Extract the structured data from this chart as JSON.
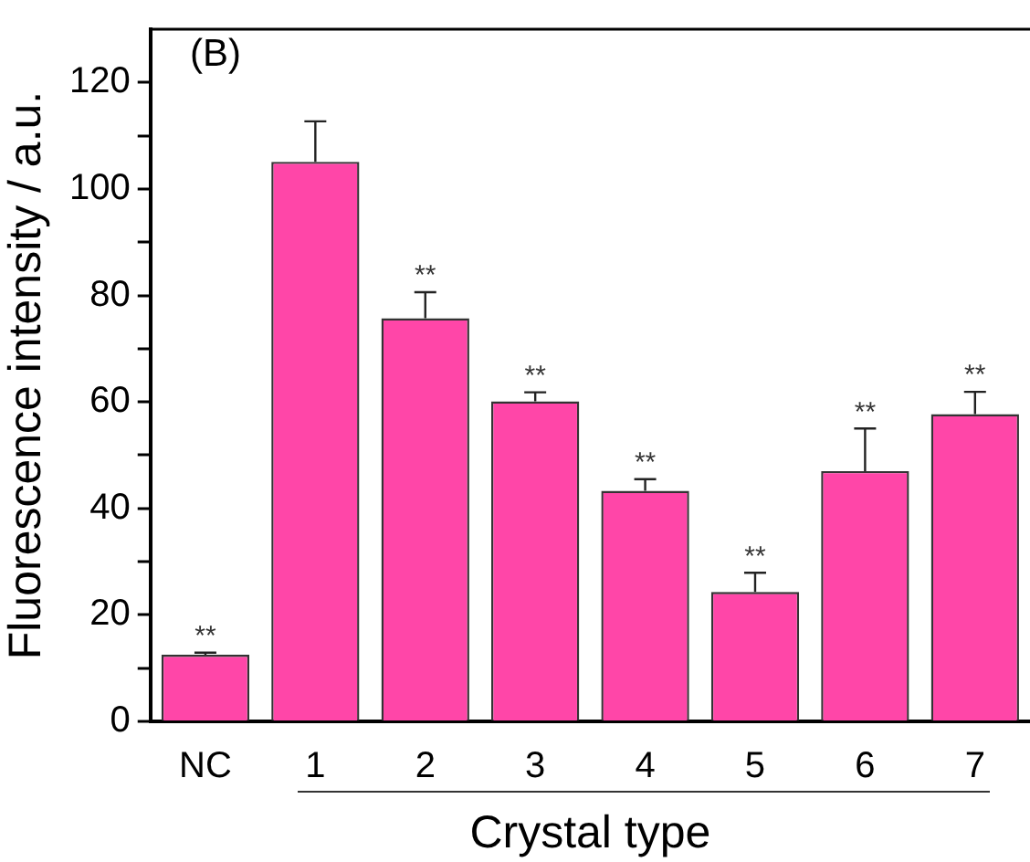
{
  "chart_data": {
    "type": "bar",
    "xlabel": "Crystal type",
    "ylabel": "Fluorescence intensity / a.u.",
    "categories": [
      "NC",
      "1",
      "2",
      "3",
      "4",
      "5",
      "6",
      "7"
    ],
    "values": [
      12.5,
      105.1,
      75.7,
      60.1,
      43.3,
      24.3,
      47.0,
      57.7
    ],
    "errors": [
      [
        12.5,
        12.9
      ],
      [
        105.1,
        112.7
      ],
      [
        75.7,
        80.6
      ],
      [
        60.1,
        61.8
      ],
      [
        43.3,
        45.5
      ],
      [
        24.3,
        27.9
      ],
      [
        47.0,
        55.0
      ],
      [
        57.7,
        61.9
      ]
    ],
    "color": "#ff46a8",
    "ylim": [
      0,
      130
    ],
    "yticks": [
      0,
      {
        "value": 10,
        "label": null
      },
      20,
      {
        "value": 30,
        "label": null
      },
      40,
      {
        "value": 50,
        "label": null
      },
      60,
      {
        "value": 70,
        "label": null
      },
      80,
      {
        "value": 90,
        "label": null
      },
      100,
      {
        "value": 110,
        "label": null
      },
      120
    ],
    "grid": false,
    "legend": false,
    "annotations": [
      "(B)",
      {
        "text": "**",
        "x": "NC",
        "y": 12.9
      },
      {
        "text": "**",
        "x": "2",
        "y": 80.6
      },
      {
        "text": "**",
        "x": "3",
        "y": 61.8
      },
      {
        "text": "**",
        "x": "4",
        "y": 45.5
      },
      {
        "text": "**",
        "x": "5",
        "y": 27.9
      },
      {
        "text": "**",
        "x": "6",
        "y": 55.0
      },
      {
        "text": "**",
        "x": "7",
        "y": 61.9
      }
    ]
  }
}
